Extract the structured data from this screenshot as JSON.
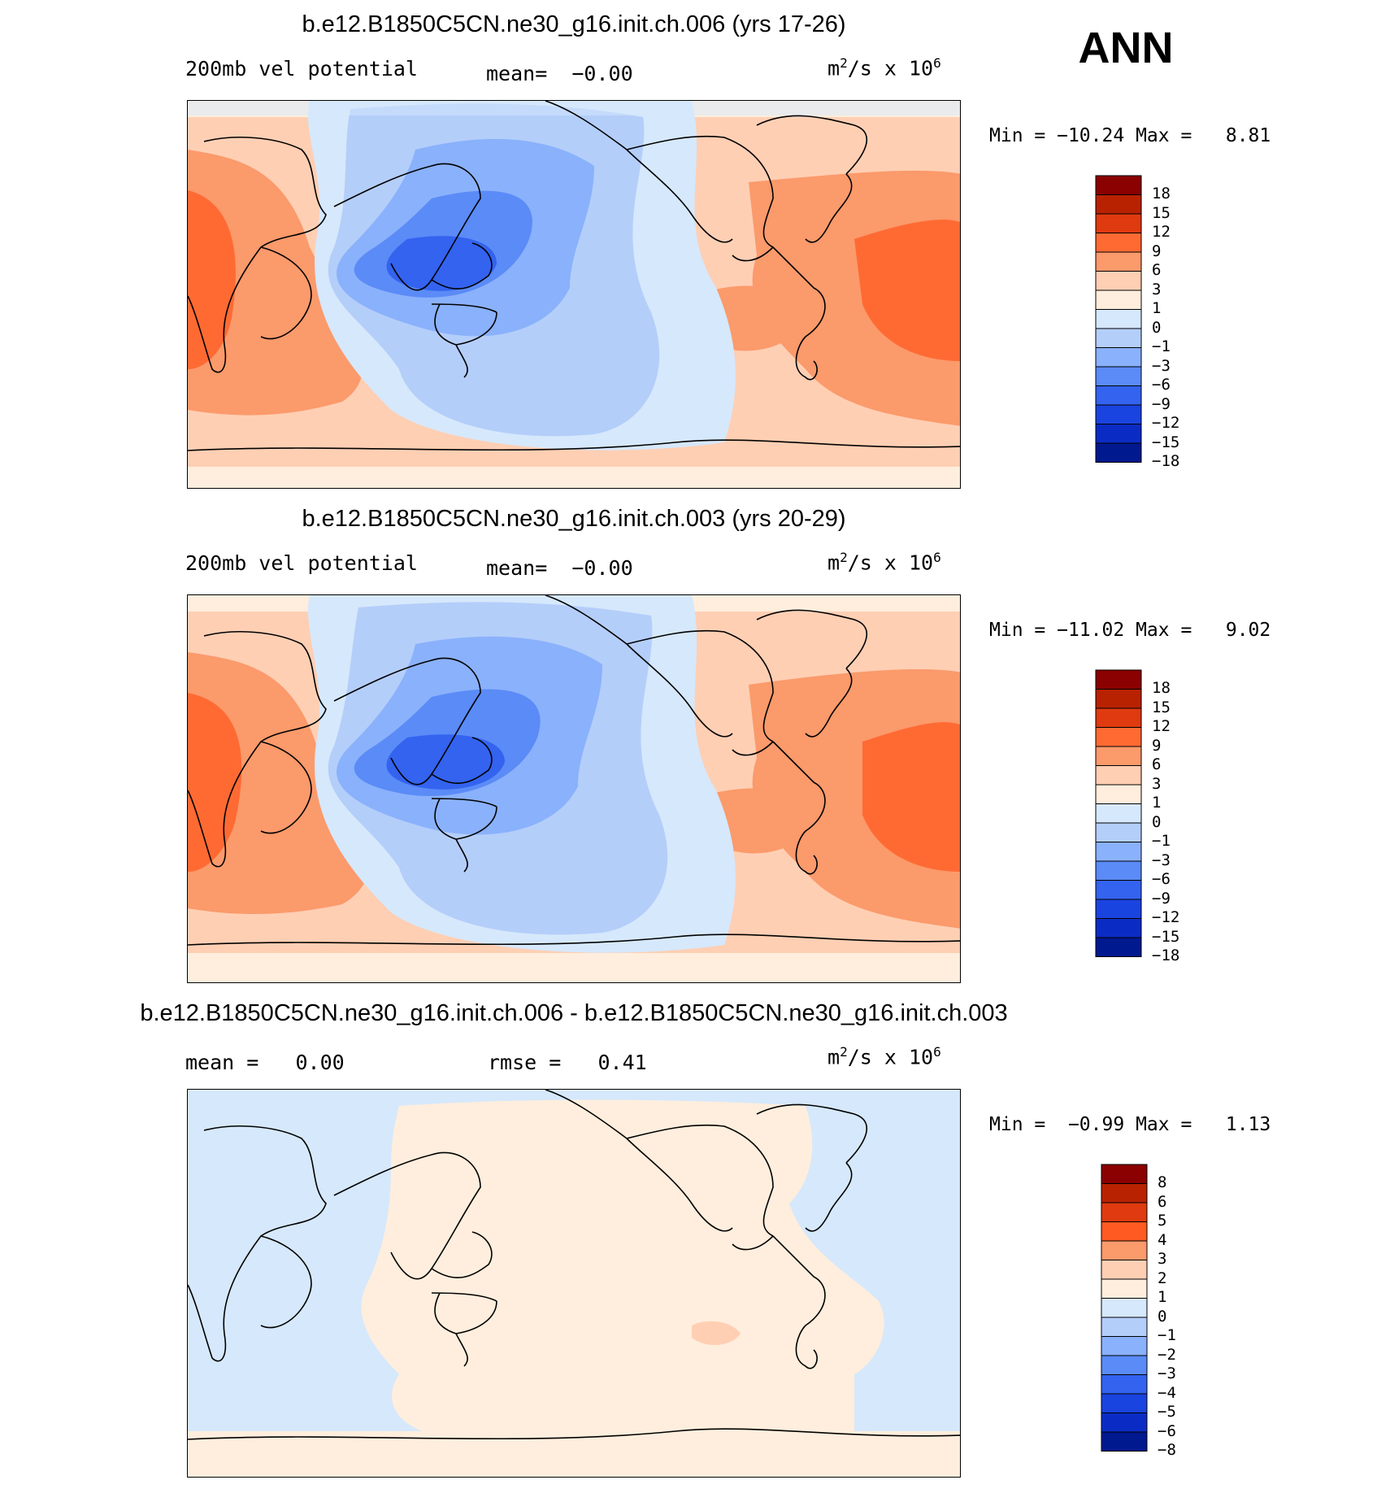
{
  "season": "ANN",
  "chart_data": [
    {
      "type": "heatmap",
      "title": "b.e12.B1850C5CN.ne30_g16.init.ch.006 (yrs 17-26)",
      "variable": "200mb vel potential",
      "mean_label": "mean=",
      "mean_value": "−0.00",
      "units": {
        "base": "m",
        "sup1": "2",
        "mid": "/s x 10",
        "sup2": "6"
      },
      "min_label": "Min =",
      "min_value": "−10.24",
      "max_label": "Max =",
      "max_value": "8.81",
      "levels": [
        "18",
        "15",
        "12",
        "9",
        "6",
        "3",
        "1",
        "0",
        "−1",
        "−3",
        "−6",
        "−9",
        "−12",
        "−15",
        "−18"
      ],
      "colors": [
        "#8b0000",
        "#b82200",
        "#e03a10",
        "#ff6a33",
        "#fb9a6b",
        "#ffcfb4",
        "#ffeedd",
        "#d6e8fb",
        "#b4cefa",
        "#8ab1fb",
        "#5a8bf7",
        "#3363ef",
        "#1a44e0",
        "#0b2cc4",
        "#00198f"
      ],
      "data_min": -10.24,
      "data_max": 8.81
    },
    {
      "type": "heatmap",
      "title": "b.e12.B1850C5CN.ne30_g16.init.ch.003 (yrs 20-29)",
      "variable": "200mb vel potential",
      "mean_label": "mean=",
      "mean_value": "−0.00",
      "units": {
        "base": "m",
        "sup1": "2",
        "mid": "/s x 10",
        "sup2": "6"
      },
      "min_label": "Min =",
      "min_value": "−11.02",
      "max_label": "Max =",
      "max_value": "9.02",
      "levels": [
        "18",
        "15",
        "12",
        "9",
        "6",
        "3",
        "1",
        "0",
        "−1",
        "−3",
        "−6",
        "−9",
        "−12",
        "−15",
        "−18"
      ],
      "colors": [
        "#8b0000",
        "#b82200",
        "#e03a10",
        "#ff6a33",
        "#fb9a6b",
        "#ffcfb4",
        "#ffeedd",
        "#d6e8fb",
        "#b4cefa",
        "#8ab1fb",
        "#5a8bf7",
        "#3363ef",
        "#1a44e0",
        "#0b2cc4",
        "#00198f"
      ],
      "data_min": -11.02,
      "data_max": 9.02
    },
    {
      "type": "heatmap",
      "title": "b.e12.B1850C5CN.ne30_g16.init.ch.006 - b.e12.B1850C5CN.ne30_g16.init.ch.003",
      "mean_label": "mean =",
      "mean_value": "0.00",
      "rmse_label": "rmse =",
      "rmse_value": "0.41",
      "units": {
        "base": "m",
        "sup1": "2",
        "mid": "/s x 10",
        "sup2": "6"
      },
      "min_label": "Min =",
      "min_value": "−0.99",
      "max_label": "Max =",
      "max_value": "1.13",
      "levels": [
        "8",
        "6",
        "5",
        "4",
        "3",
        "2",
        "1",
        "0",
        "−1",
        "−2",
        "−3",
        "−4",
        "−5",
        "−6",
        "−8"
      ],
      "colors": [
        "#8b0000",
        "#b82200",
        "#e03a10",
        "#ff5a22",
        "#fb9a6b",
        "#ffcfb4",
        "#ffeedd",
        "#d6e8fb",
        "#b4cefa",
        "#8ab1fb",
        "#5a8bf7",
        "#3363ef",
        "#1a44e0",
        "#0b2cc4",
        "#00198f"
      ],
      "data_min": -0.99,
      "data_max": 1.13
    }
  ]
}
